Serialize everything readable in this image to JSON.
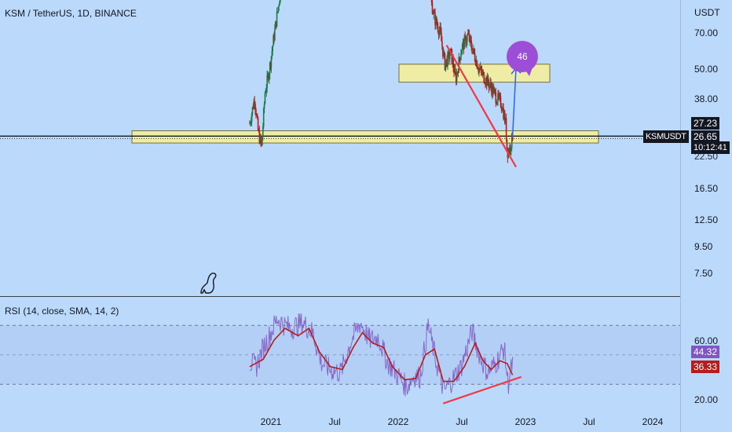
{
  "header": {
    "symbol_line": "KSM / TetherUS, 1D, BINANCE"
  },
  "price_axis": {
    "currency": "USDT",
    "ticks": [
      "70.00",
      "50.00",
      "38.00",
      "22.50",
      "16.50",
      "12.50",
      "9.50",
      "7.50"
    ]
  },
  "price_tags": {
    "symbol": "KSMUSDT",
    "last_price": "26.65",
    "countdown": "10:12:41",
    "level": "27.23"
  },
  "annotation": {
    "bubble_text": "46"
  },
  "rsi": {
    "title": "RSI (14, close, SMA, 14, 2)",
    "ticks": [
      "60.00",
      "20.00"
    ],
    "rsi_value": "44.32",
    "sma_value": "36.33"
  },
  "time_axis": {
    "labels": [
      "2021",
      "Jul",
      "2022",
      "Jul",
      "2023",
      "Jul",
      "2024"
    ]
  },
  "colors": {
    "background": "#bbd9fb",
    "candle_up": "#1f7a4a",
    "candle_down": "#b71c1c",
    "zone_fill": "#f3ee9e",
    "trendline": "#f23645",
    "arrow": "#2962ff",
    "bubble": "#9c4fd6",
    "rsi_line": "#7e57c2",
    "rsi_sma": "#b71c1c",
    "rsi_band": "#b3cdf4",
    "price_line": "#131722"
  },
  "chart_data": [
    {
      "type": "candlestick",
      "title": "KSM / TetherUS, 1D, BINANCE",
      "y_scale": "log",
      "yticks": [
        70,
        50,
        38,
        22.5,
        16.5,
        12.5,
        9.5,
        7.5
      ],
      "ylim": [
        6.5,
        100
      ],
      "x_labels": [
        "2021",
        "Jul",
        "2022",
        "Jul",
        "2023",
        "Jul",
        "2024"
      ],
      "last_price": 26.65,
      "zones": [
        {
          "low": 25,
          "high": 28
        },
        {
          "low": 44,
          "high": 52
        }
      ],
      "path": [
        {
          "date": "2020-11-01",
          "price": 30
        },
        {
          "date": "2020-11-15",
          "price": 38
        },
        {
          "date": "2020-11-25",
          "price": 28
        },
        {
          "date": "2020-12-05",
          "price": 24
        },
        {
          "date": "2020-12-15",
          "price": 40
        },
        {
          "date": "2020-12-28",
          "price": 50
        },
        {
          "date": "2021-01-10",
          "price": 68
        },
        {
          "date": "2021-01-25",
          "price": 95
        },
        {
          "date": "2021-02-05",
          "price": 130
        },
        {
          "date": "2022-03-25",
          "price": 130
        },
        {
          "date": "2022-04-01",
          "price": 100
        },
        {
          "date": "2022-04-15",
          "price": 80
        },
        {
          "date": "2022-05-01",
          "price": 70
        },
        {
          "date": "2022-05-15",
          "price": 52
        },
        {
          "date": "2022-06-01",
          "price": 58
        },
        {
          "date": "2022-06-15",
          "price": 45
        },
        {
          "date": "2022-07-01",
          "price": 60
        },
        {
          "date": "2022-07-20",
          "price": 68
        },
        {
          "date": "2022-08-05",
          "price": 58
        },
        {
          "date": "2022-08-20",
          "price": 50
        },
        {
          "date": "2022-09-05",
          "price": 46
        },
        {
          "date": "2022-09-25",
          "price": 42
        },
        {
          "date": "2022-10-10",
          "price": 38
        },
        {
          "date": "2022-10-25",
          "price": 36
        },
        {
          "date": "2022-11-05",
          "price": 30
        },
        {
          "date": "2022-11-10",
          "price": 23
        },
        {
          "date": "2022-11-18",
          "price": 24
        },
        {
          "date": "2022-11-25",
          "price": 26.65
        }
      ],
      "trendline": [
        {
          "date": "2022-05-20",
          "price": 62
        },
        {
          "date": "2022-12-05",
          "price": 20
        }
      ],
      "arrow": [
        {
          "date": "2022-11-25",
          "price": 26.5
        },
        {
          "date": "2022-12-05",
          "price": 50
        }
      ]
    },
    {
      "type": "line",
      "title": "RSI (14, close, SMA, 14, 2)",
      "yticks": [
        60,
        20
      ],
      "ylim": [
        16,
        80
      ],
      "band": [
        30,
        70
      ],
      "x_labels": [
        "2021",
        "Jul",
        "2022",
        "Jul",
        "2023",
        "Jul",
        "2024"
      ],
      "series": [
        {
          "name": "RSI",
          "points": [
            {
              "date": "2020-11-01",
              "value": 45
            },
            {
              "date": "2020-11-20",
              "value": 42
            },
            {
              "date": "2020-12-10",
              "value": 55
            },
            {
              "date": "2021-01-01",
              "value": 65
            },
            {
              "date": "2021-01-20",
              "value": 75
            },
            {
              "date": "2021-02-10",
              "value": 70
            },
            {
              "date": "2021-03-01",
              "value": 68
            },
            {
              "date": "2021-04-01",
              "value": 72
            },
            {
              "date": "2021-05-01",
              "value": 65
            },
            {
              "date": "2021-05-25",
              "value": 45
            },
            {
              "date": "2021-06-20",
              "value": 40
            },
            {
              "date": "2021-07-20",
              "value": 38
            },
            {
              "date": "2021-08-20",
              "value": 60
            },
            {
              "date": "2021-09-15",
              "value": 72
            },
            {
              "date": "2021-10-10",
              "value": 60
            },
            {
              "date": "2021-11-05",
              "value": 62
            },
            {
              "date": "2021-12-01",
              "value": 45
            },
            {
              "date": "2022-01-01",
              "value": 36
            },
            {
              "date": "2022-01-25",
              "value": 28
            },
            {
              "date": "2022-02-15",
              "value": 36
            },
            {
              "date": "2022-03-05",
              "value": 35
            },
            {
              "date": "2022-03-28",
              "value": 70
            },
            {
              "date": "2022-04-20",
              "value": 45
            },
            {
              "date": "2022-05-12",
              "value": 25
            },
            {
              "date": "2022-06-05",
              "value": 33
            },
            {
              "date": "2022-07-01",
              "value": 42
            },
            {
              "date": "2022-08-01",
              "value": 66
            },
            {
              "date": "2022-08-25",
              "value": 48
            },
            {
              "date": "2022-09-15",
              "value": 38
            },
            {
              "date": "2022-10-10",
              "value": 45
            },
            {
              "date": "2022-11-01",
              "value": 55
            },
            {
              "date": "2022-11-12",
              "value": 30
            },
            {
              "date": "2022-11-25",
              "value": 44.32
            }
          ]
        },
        {
          "name": "SMA",
          "points": [
            {
              "date": "2020-11-01",
              "value": 42
            },
            {
              "date": "2020-12-10",
              "value": 47
            },
            {
              "date": "2021-01-10",
              "value": 60
            },
            {
              "date": "2021-02-10",
              "value": 68
            },
            {
              "date": "2021-03-20",
              "value": 63
            },
            {
              "date": "2021-04-20",
              "value": 68
            },
            {
              "date": "2021-05-20",
              "value": 52
            },
            {
              "date": "2021-06-20",
              "value": 42
            },
            {
              "date": "2021-07-25",
              "value": 40
            },
            {
              "date": "2021-08-25",
              "value": 55
            },
            {
              "date": "2021-09-20",
              "value": 65
            },
            {
              "date": "2021-10-20",
              "value": 58
            },
            {
              "date": "2021-11-20",
              "value": 55
            },
            {
              "date": "2021-12-15",
              "value": 42
            },
            {
              "date": "2022-01-20",
              "value": 33
            },
            {
              "date": "2022-02-20",
              "value": 34
            },
            {
              "date": "2022-03-20",
              "value": 50
            },
            {
              "date": "2022-04-15",
              "value": 54
            },
            {
              "date": "2022-05-10",
              "value": 32
            },
            {
              "date": "2022-06-10",
              "value": 32
            },
            {
              "date": "2022-07-10",
              "value": 42
            },
            {
              "date": "2022-08-10",
              "value": 58
            },
            {
              "date": "2022-09-01",
              "value": 46
            },
            {
              "date": "2022-09-25",
              "value": 40
            },
            {
              "date": "2022-10-20",
              "value": 46
            },
            {
              "date": "2022-11-10",
              "value": 44
            },
            {
              "date": "2022-11-25",
              "value": 36.33
            }
          ]
        }
      ],
      "divergence_line": [
        {
          "date": "2022-05-10",
          "value": 17
        },
        {
          "date": "2022-12-20",
          "value": 35
        }
      ]
    }
  ]
}
